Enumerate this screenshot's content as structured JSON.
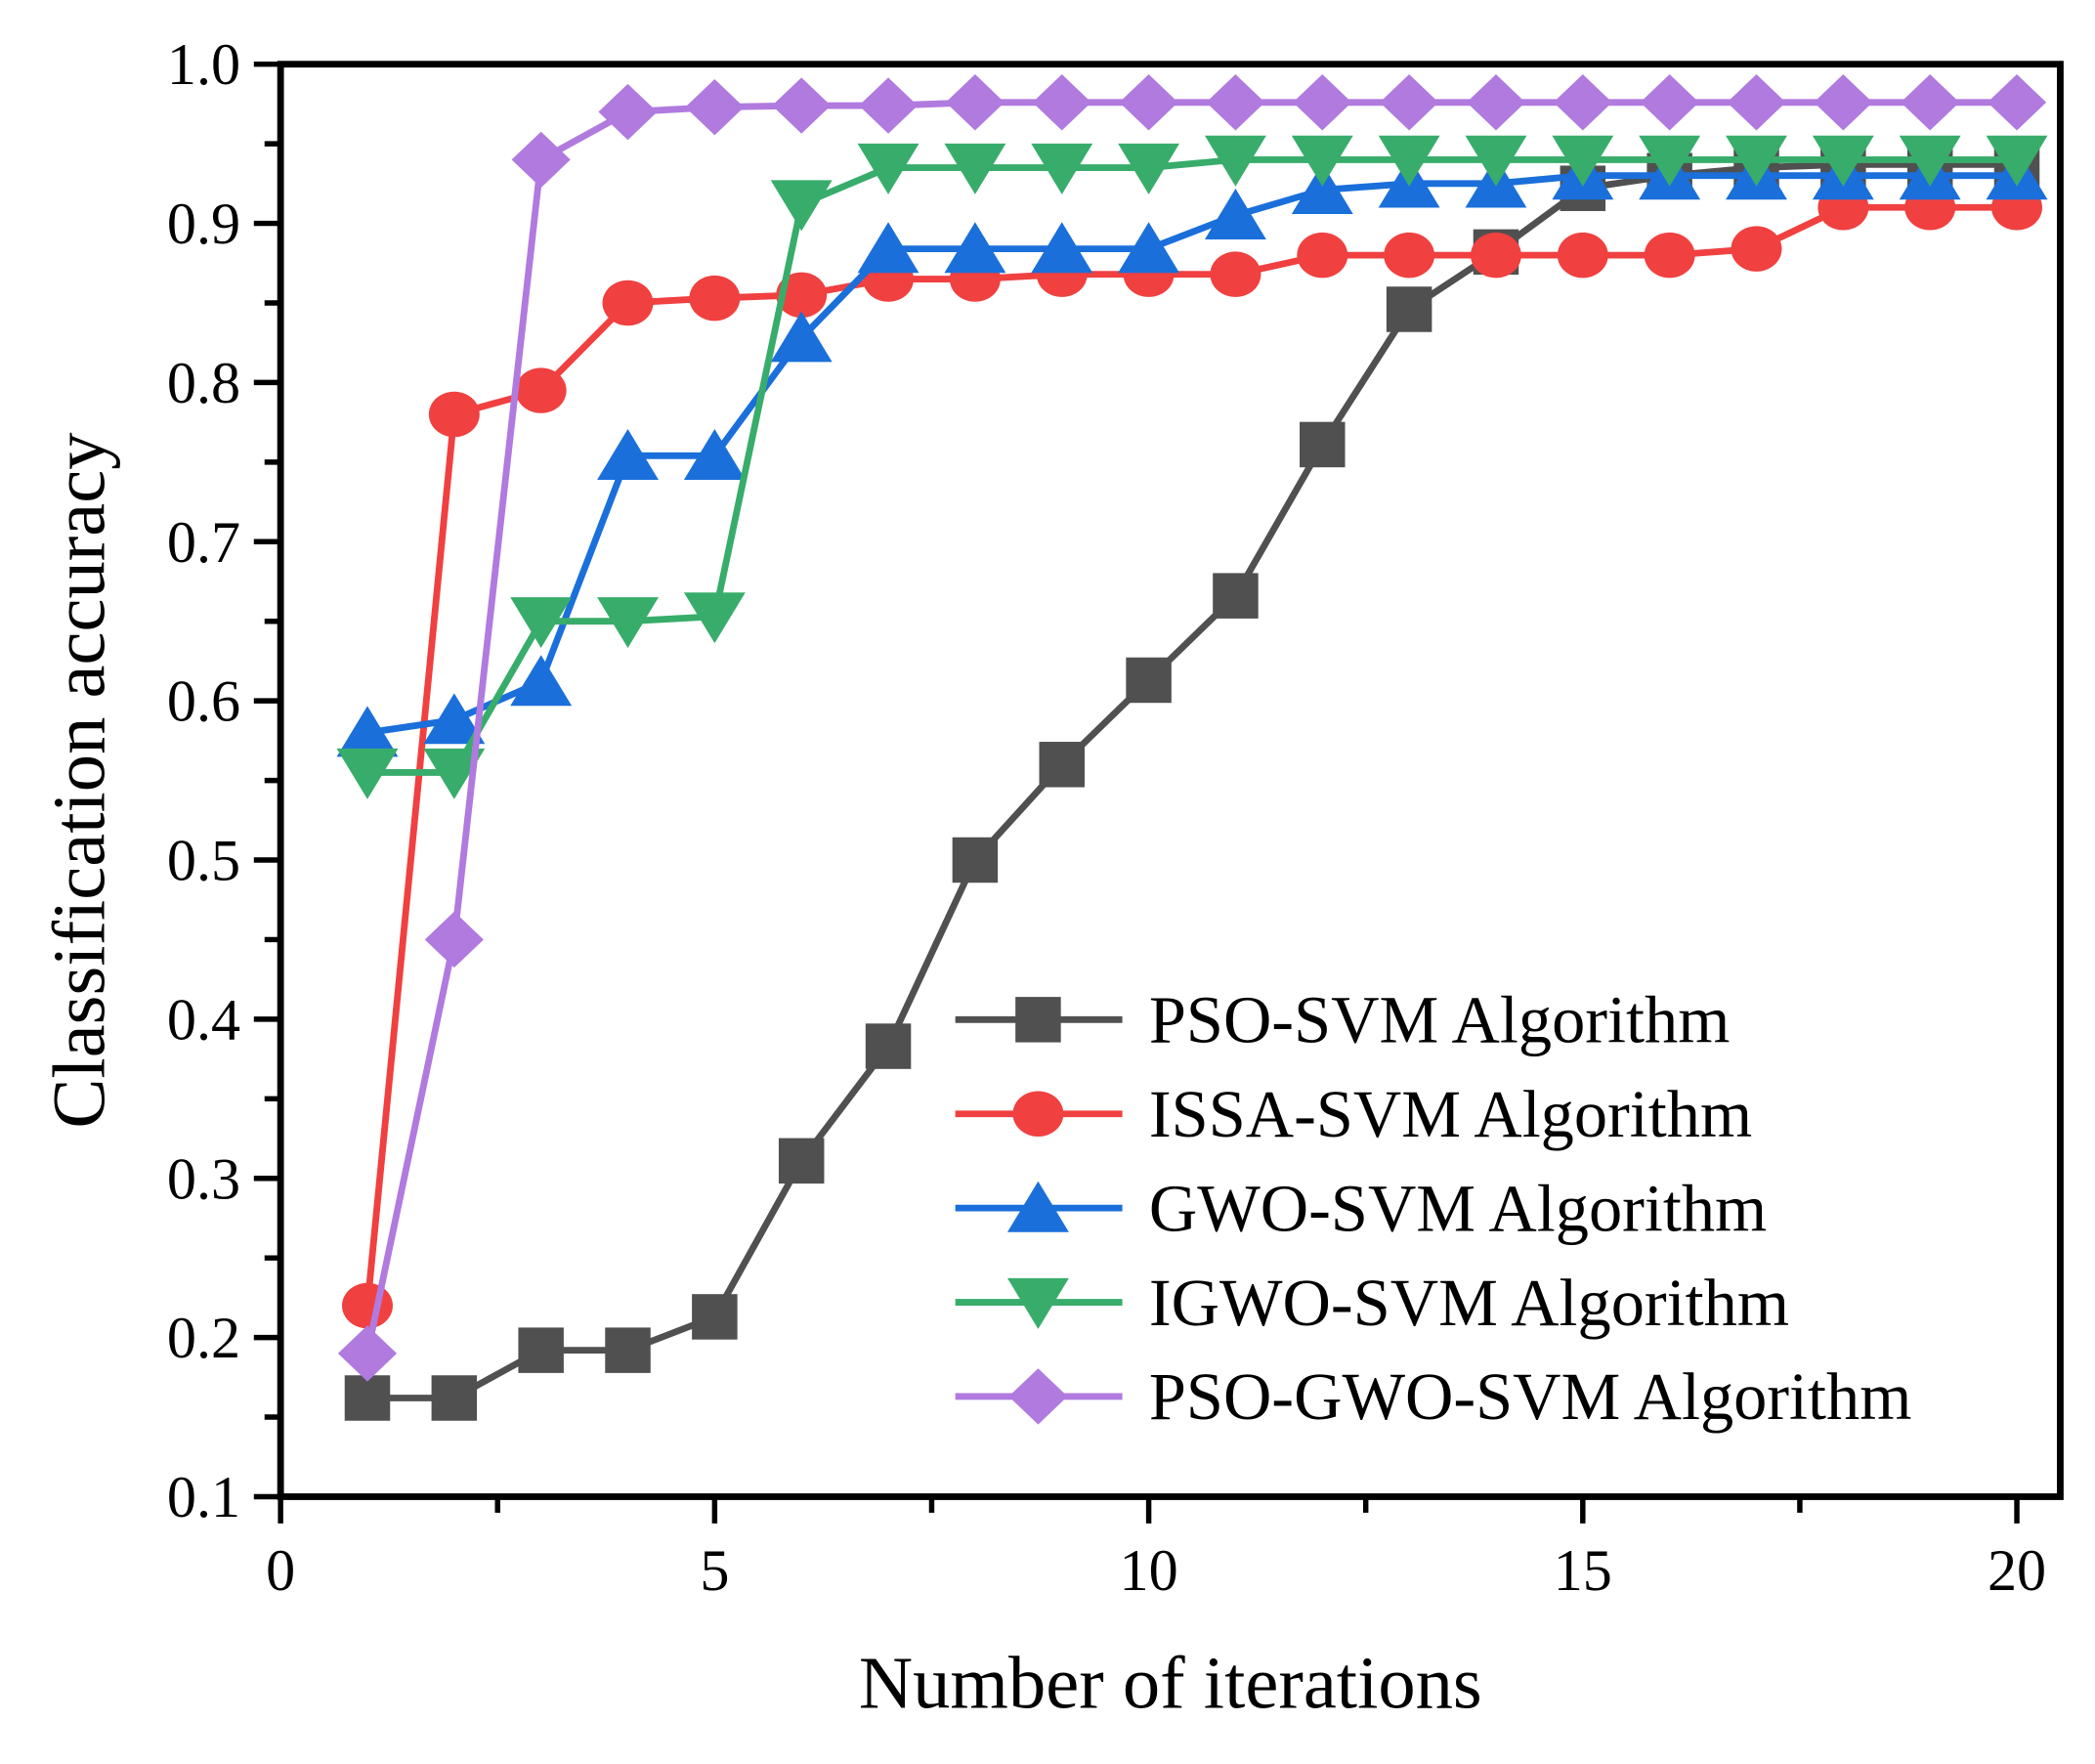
{
  "chart_data": {
    "type": "line",
    "title": "",
    "xlabel": "Number of iterations",
    "ylabel": "Classification accuracy",
    "xlim": [
      0,
      20.5
    ],
    "ylim": [
      0.1,
      1.0
    ],
    "xticks": [
      0,
      5,
      10,
      15,
      20
    ],
    "xtick_labels": [
      "0",
      "5",
      "10",
      "15",
      "20"
    ],
    "yticks": [
      0.1,
      0.2,
      0.3,
      0.4,
      0.5,
      0.6,
      0.7,
      0.8,
      0.9,
      1.0
    ],
    "ytick_labels": [
      "0.1",
      "0.2",
      "0.3",
      "0.4",
      "0.5",
      "0.6",
      "0.7",
      "0.8",
      "0.9",
      "1.0"
    ],
    "grid": false,
    "legend_position": "bottom-right",
    "x": [
      1,
      2,
      3,
      4,
      5,
      6,
      7,
      8,
      9,
      10,
      11,
      12,
      13,
      14,
      15,
      16,
      17,
      18,
      19,
      20
    ],
    "series": [
      {
        "name": "PSO-SVM Algorithm",
        "color": "#505050",
        "marker": "square",
        "values": [
          0.162,
          0.162,
          0.192,
          0.192,
          0.213,
          0.311,
          0.383,
          0.5,
          0.56,
          0.613,
          0.666,
          0.761,
          0.846,
          0.882,
          0.922,
          0.93,
          0.935,
          0.937,
          0.937,
          0.937
        ]
      },
      {
        "name": "ISSA-SVM Algorithm",
        "color": "#f04040",
        "marker": "circle",
        "values": [
          0.22,
          0.78,
          0.795,
          0.85,
          0.853,
          0.855,
          0.865,
          0.865,
          0.868,
          0.868,
          0.868,
          0.88,
          0.88,
          0.88,
          0.88,
          0.88,
          0.884,
          0.91,
          0.91,
          0.91
        ]
      },
      {
        "name": "GWO-SVM Algorithm",
        "color": "#1a6fdb",
        "marker": "triangle-up",
        "values": [
          0.58,
          0.588,
          0.612,
          0.754,
          0.754,
          0.828,
          0.884,
          0.884,
          0.884,
          0.884,
          0.905,
          0.921,
          0.925,
          0.925,
          0.93,
          0.93,
          0.93,
          0.93,
          0.93,
          0.93
        ]
      },
      {
        "name": "IGWO-SVM Algorithm",
        "color": "#38ad6b",
        "marker": "triangle-down",
        "values": [
          0.555,
          0.555,
          0.65,
          0.65,
          0.653,
          0.912,
          0.935,
          0.935,
          0.935,
          0.935,
          0.94,
          0.94,
          0.94,
          0.94,
          0.94,
          0.94,
          0.94,
          0.94,
          0.94,
          0.94
        ]
      },
      {
        "name": "PSO-GWO-SVM Algorithm",
        "color": "#b07adf",
        "marker": "diamond",
        "values": [
          0.19,
          0.45,
          0.94,
          0.97,
          0.973,
          0.974,
          0.974,
          0.976,
          0.976,
          0.976,
          0.976,
          0.976,
          0.976,
          0.976,
          0.976,
          0.976,
          0.976,
          0.976,
          0.976,
          0.976
        ]
      }
    ]
  }
}
